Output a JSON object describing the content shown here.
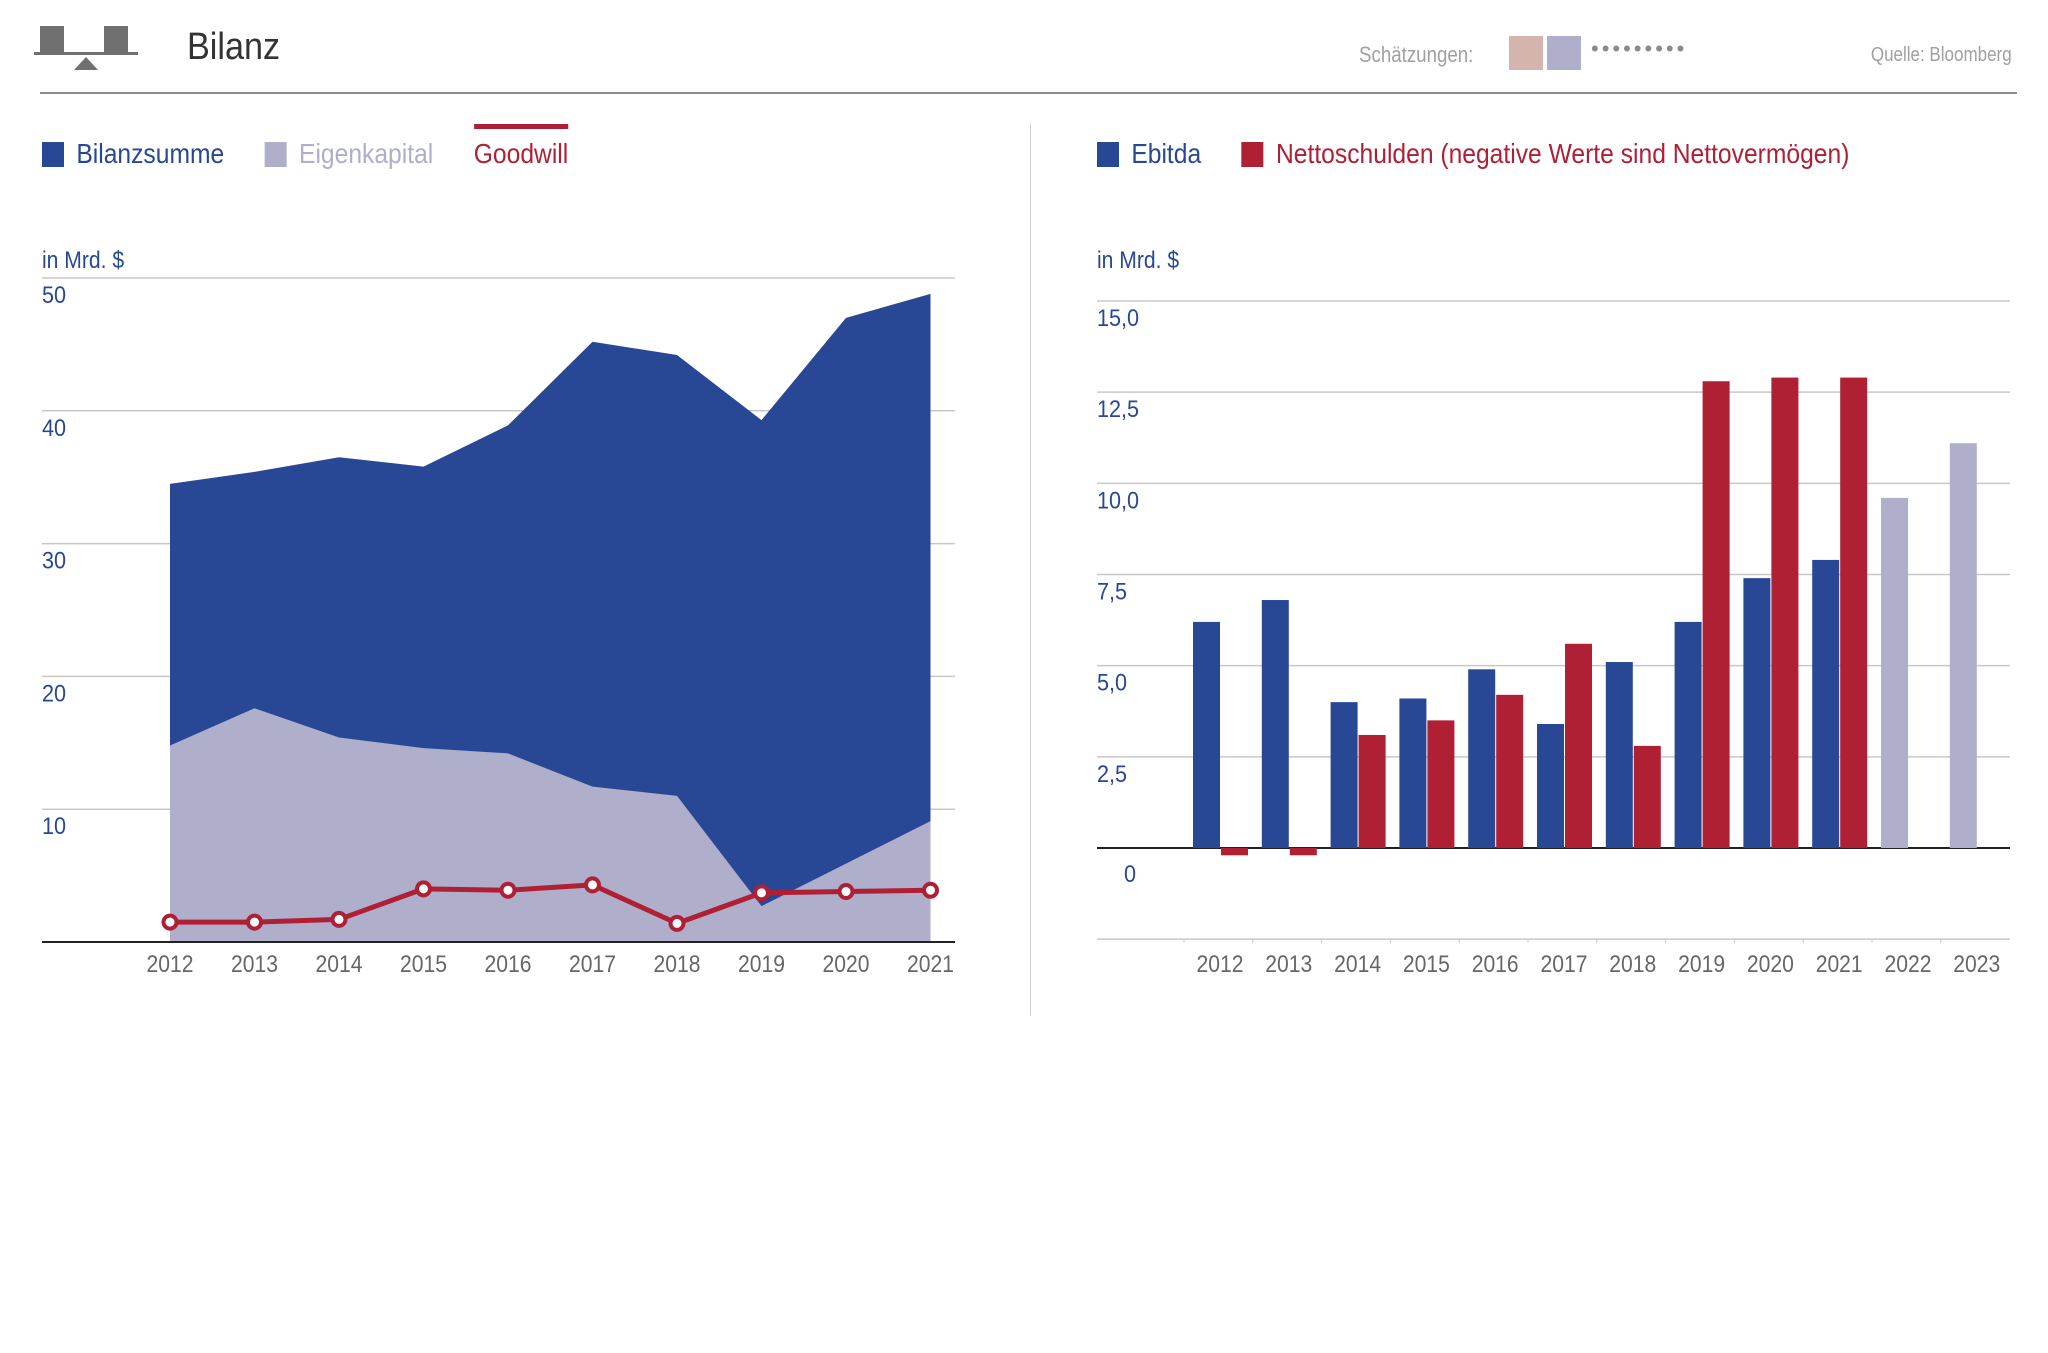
{
  "header": {
    "title": "Bilanz",
    "estimates_label": "Schätzungen:",
    "estimate_colors": [
      "#d4b5ad",
      "#afaecb"
    ],
    "estimate_dots": "•••••••••",
    "source": "Quelle: Bloomberg",
    "logo_icon": "balance-scale-icon"
  },
  "colors": {
    "blue": "#284896",
    "lavender": "#afaecb",
    "red": "#b02035",
    "axis_text": "#284896",
    "tick_text": "#666666"
  },
  "chart_data": [
    {
      "type": "area",
      "unit": "in Mrd. $",
      "legend": [
        {
          "name": "Bilanzsumme",
          "color": "#284896",
          "style": "square"
        },
        {
          "name": "Eigenkapital",
          "color": "#afaecb",
          "style": "square"
        },
        {
          "name": "Goodwill",
          "color": "#b02035",
          "style": "line"
        }
      ],
      "x": [
        "2012",
        "2013",
        "2014",
        "2015",
        "2016",
        "2017",
        "2018",
        "2019",
        "2020",
        "2021"
      ],
      "series": [
        {
          "name": "Bilanzsumme",
          "type": "area",
          "values": [
            34.5,
            35.4,
            36.5,
            35.8,
            38.9,
            45.2,
            44.2,
            39.3,
            47.0,
            48.8
          ]
        },
        {
          "name": "Eigenkapital",
          "type": "area",
          "values": [
            14.8,
            17.6,
            15.4,
            14.6,
            14.2,
            11.7,
            11.0,
            2.7,
            5.9,
            9.1
          ]
        },
        {
          "name": "Goodwill",
          "type": "line",
          "values": [
            1.5,
            1.5,
            1.7,
            4.0,
            3.9,
            4.3,
            1.4,
            3.7,
            3.8,
            3.9
          ]
        }
      ],
      "yticks": [
        "10",
        "20",
        "30",
        "40",
        "50"
      ],
      "ylim": [
        0,
        50
      ],
      "grid": true,
      "legend_position": "top-left"
    },
    {
      "type": "bar",
      "unit": "in Mrd. $",
      "legend": [
        {
          "name": "Ebitda",
          "color": "#284896",
          "style": "square"
        },
        {
          "name": "Nettoschulden (negative Werte sind Nettovermögen)",
          "color": "#b02035",
          "style": "square"
        }
      ],
      "categories": [
        "2012",
        "2013",
        "2014",
        "2015",
        "2016",
        "2017",
        "2018",
        "2019",
        "2020",
        "2021",
        "2022",
        "2023"
      ],
      "estimate_from_index": 10,
      "series": [
        {
          "name": "Ebitda",
          "values": [
            6.2,
            6.8,
            4.0,
            4.1,
            4.9,
            3.4,
            5.1,
            6.2,
            7.4,
            7.9,
            9.6,
            11.1
          ]
        },
        {
          "name": "Nettoschulden (negative Werte sind Nettovermögen)",
          "values": [
            -0.2,
            -0.2,
            3.1,
            3.5,
            4.2,
            5.6,
            2.8,
            12.8,
            12.9,
            12.9,
            null,
            null
          ]
        }
      ],
      "yticks": [
        "0",
        "2,5",
        "5,0",
        "7,5",
        "10,0",
        "12,5",
        "15,0"
      ],
      "ylim": [
        -2.5,
        15
      ],
      "grid": true,
      "legend_position": "top-left"
    }
  ]
}
